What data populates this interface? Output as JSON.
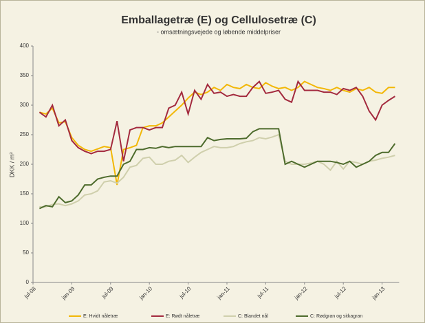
{
  "chart_data": {
    "type": "line",
    "title": "Emballagetræ (E) og Cellulosetræ (C)",
    "subtitle": "- omsætningsvejede og løbende middelpriser",
    "y_label": "DKK / m³",
    "categories": [
      "jul-08",
      null,
      null,
      null,
      null,
      null,
      "jan-09",
      null,
      null,
      null,
      null,
      null,
      "jul-09",
      null,
      null,
      null,
      null,
      null,
      "jan-10",
      null,
      null,
      null,
      null,
      null,
      "jul-10",
      null,
      null,
      null,
      null,
      null,
      "jan-11",
      null,
      null,
      null,
      null,
      null,
      "jul-11",
      null,
      null,
      null,
      null,
      null,
      "jan-12",
      null,
      null,
      null,
      null,
      null,
      "jul-12",
      null,
      null,
      null,
      null,
      null,
      "jan-13",
      null,
      null
    ],
    "ylim": [
      0,
      400
    ],
    "yticks": [
      0,
      50,
      100,
      150,
      200,
      250,
      300,
      350,
      400
    ],
    "grid": false,
    "legend": "bottom",
    "series": [
      {
        "name": "E: Hvidt nåletræ",
        "color": "#f2b705",
        "values": [
          null,
          288,
          285,
          295,
          270,
          272,
          245,
          232,
          225,
          222,
          226,
          230,
          228,
          165,
          225,
          228,
          232,
          262,
          265,
          265,
          270,
          280,
          290,
          300,
          312,
          322,
          318,
          322,
          330,
          325,
          335,
          330,
          328,
          335,
          330,
          328,
          338,
          332,
          328,
          330,
          325,
          330,
          340,
          335,
          330,
          328,
          325,
          330,
          325,
          322,
          328,
          325,
          330,
          322,
          320,
          330,
          330
        ]
      },
      {
        "name": "E: Rødt nåletræ",
        "color": "#a32a3e",
        "values": [
          null,
          288,
          280,
          300,
          265,
          275,
          240,
          228,
          222,
          218,
          222,
          222,
          225,
          273,
          205,
          258,
          262,
          262,
          258,
          262,
          262,
          295,
          300,
          322,
          285,
          325,
          310,
          335,
          320,
          322,
          315,
          318,
          315,
          315,
          330,
          340,
          320,
          322,
          325,
          310,
          305,
          340,
          325,
          325,
          325,
          322,
          322,
          318,
          328,
          325,
          330,
          315,
          290,
          275,
          300,
          308,
          315
        ]
      },
      {
        "name": "C: Blandet nål",
        "color": "#cfcfac",
        "values": [
          null,
          128,
          128,
          132,
          133,
          130,
          133,
          138,
          148,
          150,
          155,
          170,
          172,
          168,
          178,
          195,
          198,
          210,
          212,
          200,
          200,
          205,
          207,
          215,
          203,
          212,
          220,
          225,
          230,
          228,
          228,
          230,
          235,
          238,
          240,
          245,
          243,
          246,
          250,
          205,
          200,
          200,
          200,
          202,
          205,
          200,
          190,
          205,
          192,
          205,
          203,
          200,
          205,
          207,
          210,
          212,
          215
        ]
      },
      {
        "name": "C: Rødgran og sitkagran",
        "color": "#4d6b2c",
        "values": [
          null,
          125,
          130,
          128,
          145,
          135,
          138,
          148,
          165,
          165,
          175,
          178,
          180,
          180,
          200,
          205,
          225,
          225,
          228,
          227,
          230,
          228,
          230,
          230,
          230,
          230,
          230,
          245,
          240,
          242,
          243,
          243,
          243,
          244,
          255,
          260,
          260,
          260,
          260,
          200,
          205,
          200,
          195,
          200,
          205,
          205,
          205,
          203,
          200,
          205,
          195,
          200,
          205,
          215,
          220,
          220,
          235
        ]
      }
    ]
  }
}
